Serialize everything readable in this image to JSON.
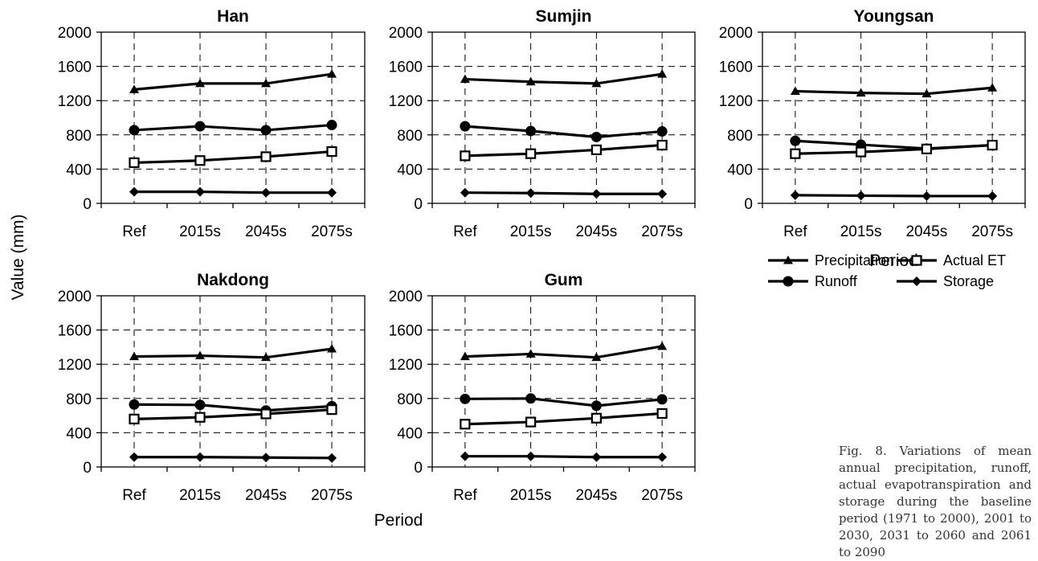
{
  "figure": {
    "ylabel": "Value (mm)",
    "xlabel": "Period",
    "caption": "Fig. 8. Variations of mean annual precipitation, runoff, actual evapotranspiration and storage during the baseline period (1971 to 2000), 2001 to 2030, 2031 to 2060 and 2061 to 2090"
  },
  "legend": {
    "items": [
      {
        "name": "Precipitation",
        "marker": "triangle"
      },
      {
        "name": "Actual ET",
        "marker": "open-square"
      },
      {
        "name": "Runoff",
        "marker": "circle"
      },
      {
        "name": "Storage",
        "marker": "diamond"
      }
    ]
  },
  "chart_data": [
    {
      "type": "line",
      "title": "Han",
      "xlabel": "",
      "ylabel": "",
      "categories": [
        "Ref",
        "2015s",
        "2045s",
        "2075s"
      ],
      "ylim": [
        0,
        2000
      ],
      "yticks": [
        0,
        400,
        800,
        1200,
        1600,
        2000
      ],
      "grid": true,
      "series": [
        {
          "name": "Precipitation",
          "values": [
            1330,
            1400,
            1400,
            1510
          ]
        },
        {
          "name": "Runoff",
          "values": [
            855,
            900,
            855,
            915
          ]
        },
        {
          "name": "Actual ET",
          "values": [
            475,
            500,
            545,
            605
          ]
        },
        {
          "name": "Storage",
          "values": [
            135,
            135,
            125,
            125
          ]
        }
      ]
    },
    {
      "type": "line",
      "title": "Sumjin",
      "xlabel": "",
      "ylabel": "",
      "categories": [
        "Ref",
        "2015s",
        "2045s",
        "2075s"
      ],
      "ylim": [
        0,
        2000
      ],
      "yticks": [
        0,
        400,
        800,
        1200,
        1600,
        2000
      ],
      "grid": true,
      "series": [
        {
          "name": "Precipitation",
          "values": [
            1450,
            1420,
            1400,
            1510
          ]
        },
        {
          "name": "Runoff",
          "values": [
            900,
            845,
            775,
            840
          ]
        },
        {
          "name": "Actual ET",
          "values": [
            555,
            580,
            625,
            680
          ]
        },
        {
          "name": "Storage",
          "values": [
            125,
            120,
            110,
            110
          ]
        }
      ]
    },
    {
      "type": "line",
      "title": "Youngsan",
      "xlabel": "Period",
      "ylabel": "",
      "categories": [
        "Ref",
        "2015s",
        "2045s",
        "2075s"
      ],
      "ylim": [
        0,
        2000
      ],
      "yticks": [
        0,
        400,
        800,
        1200,
        1600,
        2000
      ],
      "grid": true,
      "series": [
        {
          "name": "Precipitation",
          "values": [
            1310,
            1290,
            1280,
            1350
          ]
        },
        {
          "name": "Runoff",
          "values": [
            730,
            685,
            640,
            680
          ]
        },
        {
          "name": "Actual ET",
          "values": [
            580,
            600,
            635,
            680
          ]
        },
        {
          "name": "Storage",
          "values": [
            95,
            90,
            85,
            85
          ]
        }
      ]
    },
    {
      "type": "line",
      "title": "Nakdong",
      "xlabel": "",
      "ylabel": "",
      "categories": [
        "Ref",
        "2015s",
        "2045s",
        "2075s"
      ],
      "ylim": [
        0,
        2000
      ],
      "yticks": [
        0,
        400,
        800,
        1200,
        1600,
        2000
      ],
      "grid": true,
      "series": [
        {
          "name": "Precipitation",
          "values": [
            1290,
            1300,
            1280,
            1380
          ]
        },
        {
          "name": "Runoff",
          "values": [
            730,
            725,
            660,
            710
          ]
        },
        {
          "name": "Actual ET",
          "values": [
            560,
            580,
            620,
            670
          ]
        },
        {
          "name": "Storage",
          "values": [
            115,
            115,
            110,
            105
          ]
        }
      ]
    },
    {
      "type": "line",
      "title": "Gum",
      "xlabel": "",
      "ylabel": "",
      "categories": [
        "Ref",
        "2015s",
        "2045s",
        "2075s"
      ],
      "ylim": [
        0,
        2000
      ],
      "yticks": [
        0,
        400,
        800,
        1200,
        1600,
        2000
      ],
      "grid": true,
      "series": [
        {
          "name": "Precipitation",
          "values": [
            1290,
            1320,
            1280,
            1410
          ]
        },
        {
          "name": "Runoff",
          "values": [
            795,
            800,
            715,
            790
          ]
        },
        {
          "name": "Actual ET",
          "values": [
            500,
            525,
            570,
            625
          ]
        },
        {
          "name": "Storage",
          "values": [
            125,
            125,
            115,
            115
          ]
        }
      ]
    }
  ]
}
